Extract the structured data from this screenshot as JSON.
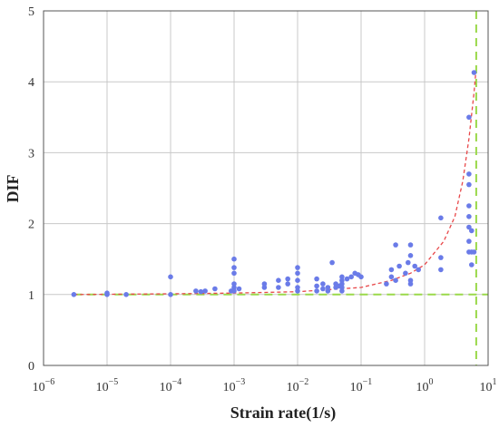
{
  "chart_data": {
    "type": "scatter",
    "xlabel": "Strain rate(1/s)",
    "ylabel": "DIF",
    "xscale": "log",
    "xlim": [
      1e-06,
      10
    ],
    "ylim": [
      0,
      5
    ],
    "grid": true,
    "x_ticks": [
      {
        "base": "10",
        "exp": "−6"
      },
      {
        "base": "10",
        "exp": "−5"
      },
      {
        "base": "10",
        "exp": "−4"
      },
      {
        "base": "10",
        "exp": "−3"
      },
      {
        "base": "10",
        "exp": "−2"
      },
      {
        "base": "10",
        "exp": "−1"
      },
      {
        "base": "10",
        "exp": "0"
      },
      {
        "base": "10",
        "exp": "1"
      }
    ],
    "y_ticks": [
      "0",
      "1",
      "2",
      "3",
      "4",
      "5"
    ],
    "colors": {
      "points": "#6a7be8",
      "fit_curve": "#e8484a",
      "reference_lines": "#9ad94a",
      "grid": "#c8c8c8",
      "frame": "#555555"
    },
    "reference_lines": [
      {
        "orientation": "horizontal",
        "y": 1
      },
      {
        "orientation": "vertical",
        "x": 6.5
      }
    ],
    "series": [
      {
        "kind": "points",
        "points": [
          [
            3e-06,
            1.0
          ],
          [
            1e-05,
            1.02
          ],
          [
            1e-05,
            1.0
          ],
          [
            2e-05,
            1.0
          ],
          [
            0.0001,
            1.25
          ],
          [
            0.0001,
            1.0
          ],
          [
            0.00025,
            1.05
          ],
          [
            0.0003,
            1.04
          ],
          [
            0.00035,
            1.05
          ],
          [
            0.0005,
            1.08
          ],
          [
            0.0009,
            1.05
          ],
          [
            0.001,
            1.5
          ],
          [
            0.001,
            1.38
          ],
          [
            0.001,
            1.3
          ],
          [
            0.001,
            1.15
          ],
          [
            0.001,
            1.1
          ],
          [
            0.001,
            1.05
          ],
          [
            0.0012,
            1.08
          ],
          [
            0.003,
            1.1
          ],
          [
            0.003,
            1.15
          ],
          [
            0.005,
            1.2
          ],
          [
            0.005,
            1.1
          ],
          [
            0.007,
            1.15
          ],
          [
            0.007,
            1.22
          ],
          [
            0.01,
            1.38
          ],
          [
            0.01,
            1.3
          ],
          [
            0.01,
            1.2
          ],
          [
            0.01,
            1.1
          ],
          [
            0.01,
            1.05
          ],
          [
            0.02,
            1.22
          ],
          [
            0.02,
            1.12
          ],
          [
            0.02,
            1.05
          ],
          [
            0.025,
            1.15
          ],
          [
            0.025,
            1.08
          ],
          [
            0.03,
            1.1
          ],
          [
            0.03,
            1.05
          ],
          [
            0.035,
            1.45
          ],
          [
            0.04,
            1.15
          ],
          [
            0.04,
            1.1
          ],
          [
            0.045,
            1.12
          ],
          [
            0.05,
            1.25
          ],
          [
            0.05,
            1.2
          ],
          [
            0.05,
            1.15
          ],
          [
            0.05,
            1.1
          ],
          [
            0.05,
            1.05
          ],
          [
            0.06,
            1.22
          ],
          [
            0.07,
            1.25
          ],
          [
            0.08,
            1.3
          ],
          [
            0.09,
            1.28
          ],
          [
            0.1,
            1.25
          ],
          [
            0.25,
            1.15
          ],
          [
            0.3,
            1.35
          ],
          [
            0.3,
            1.25
          ],
          [
            0.35,
            1.2
          ],
          [
            0.35,
            1.7
          ],
          [
            0.4,
            1.4
          ],
          [
            0.5,
            1.3
          ],
          [
            0.55,
            1.45
          ],
          [
            0.6,
            1.7
          ],
          [
            0.6,
            1.55
          ],
          [
            0.6,
            1.2
          ],
          [
            0.6,
            1.15
          ],
          [
            0.7,
            1.4
          ],
          [
            0.8,
            1.35
          ],
          [
            1.8,
            2.08
          ],
          [
            1.8,
            1.52
          ],
          [
            1.8,
            1.35
          ],
          [
            5,
            3.5
          ],
          [
            5,
            2.7
          ],
          [
            5,
            2.55
          ],
          [
            5,
            2.25
          ],
          [
            5,
            2.1
          ],
          [
            5,
            1.95
          ],
          [
            5,
            1.75
          ],
          [
            5,
            1.6
          ],
          [
            5.5,
            1.42
          ],
          [
            5.5,
            1.6
          ],
          [
            5.5,
            1.9
          ],
          [
            6,
            4.13
          ],
          [
            6,
            1.6
          ]
        ]
      },
      {
        "kind": "fit_curve",
        "style": "dashed",
        "points": [
          [
            3e-06,
            1.0
          ],
          [
            0.0001,
            1.01
          ],
          [
            0.001,
            1.02
          ],
          [
            0.01,
            1.04
          ],
          [
            0.1,
            1.1
          ],
          [
            0.3,
            1.2
          ],
          [
            0.6,
            1.3
          ],
          [
            1.0,
            1.42
          ],
          [
            2.0,
            1.75
          ],
          [
            3.0,
            2.1
          ],
          [
            4.0,
            2.6
          ],
          [
            5.0,
            3.2
          ],
          [
            6.0,
            3.85
          ],
          [
            6.4,
            4.13
          ]
        ]
      }
    ]
  }
}
